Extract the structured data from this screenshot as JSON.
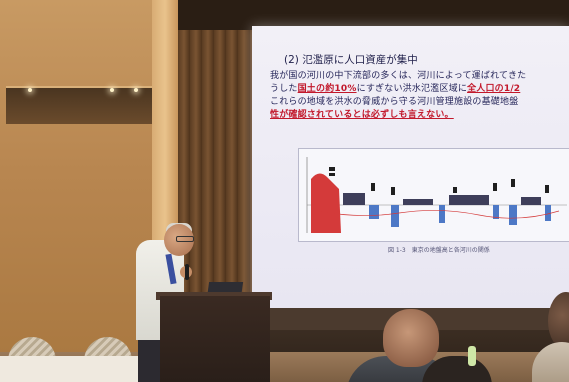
{
  "slide": {
    "heading": "(2) 氾濫原に人口資産が集中",
    "line1": "我が国の河川の中下流部の多くは、河川によって運ばれてきた",
    "line2_before": "うした",
    "line2_red1": "国土の約10%",
    "line2_mid": "にすぎない洪水氾濫区域に",
    "line2_red2": "全人口の1/2",
    "line3": "これらの地域を洪水の脅威から守る河川管理施設の基礎地盤",
    "line4_red": "性が確認されているとは必ずしも言えない。",
    "figure_caption": "図 1-3　東京の地盤高と各河川の関係"
  },
  "figure": {
    "colors": {
      "land_red": "#d43a3a",
      "water_blue": "#4d78c6",
      "structure_dark": "#3e3e5a",
      "label_dark": "#1f1f1f"
    }
  },
  "icons": {
    "speaker": "person-presenter-icon",
    "podium": "lectern-icon",
    "audience": "audience-member-icon"
  }
}
